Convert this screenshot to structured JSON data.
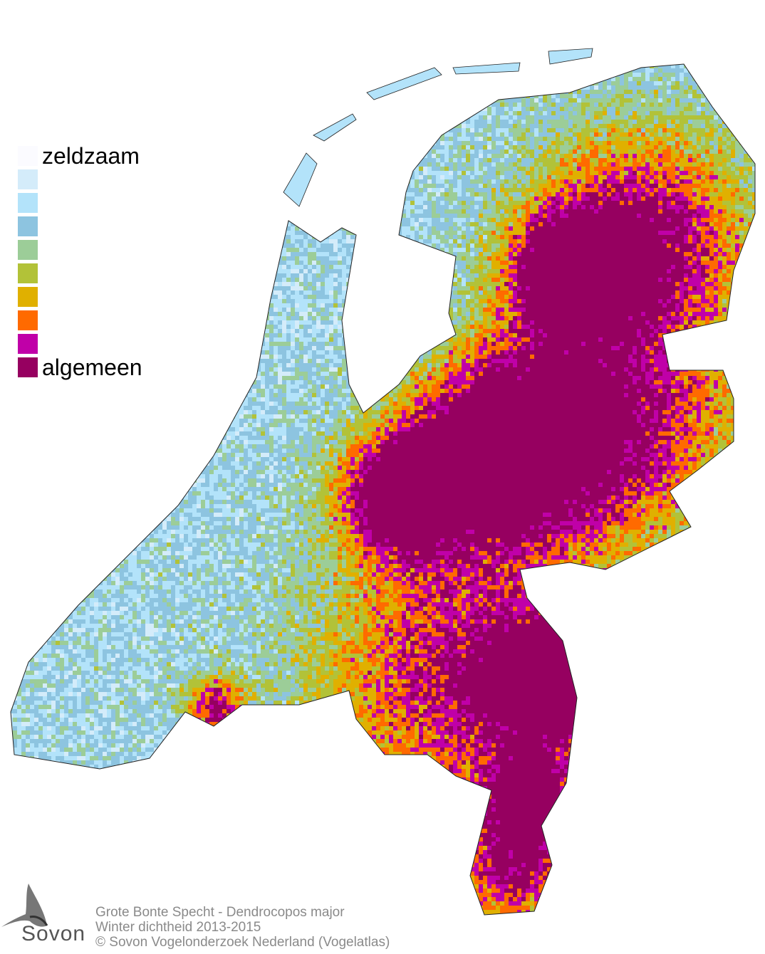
{
  "legend": {
    "low_label": "zeldzaam",
    "high_label": "algemeen",
    "colors": [
      "#fbfbff",
      "#d4ecfa",
      "#b3e3fa",
      "#8dc4e0",
      "#9ccd98",
      "#b2c238",
      "#e0b000",
      "#ff6a00",
      "#c000a8",
      "#960060"
    ]
  },
  "caption": {
    "species": "Grote Bonte Specht - Dendrocopos major",
    "subtitle": "Winter dichtheid 2013-2015",
    "copyright": "© Sovon Vogelonderzoek Nederland (Vogelatlas)"
  },
  "logo": {
    "text": "Sovon",
    "icon": "swallow-icon"
  },
  "map": {
    "region": "Nederland",
    "border_color": "#222222"
  }
}
